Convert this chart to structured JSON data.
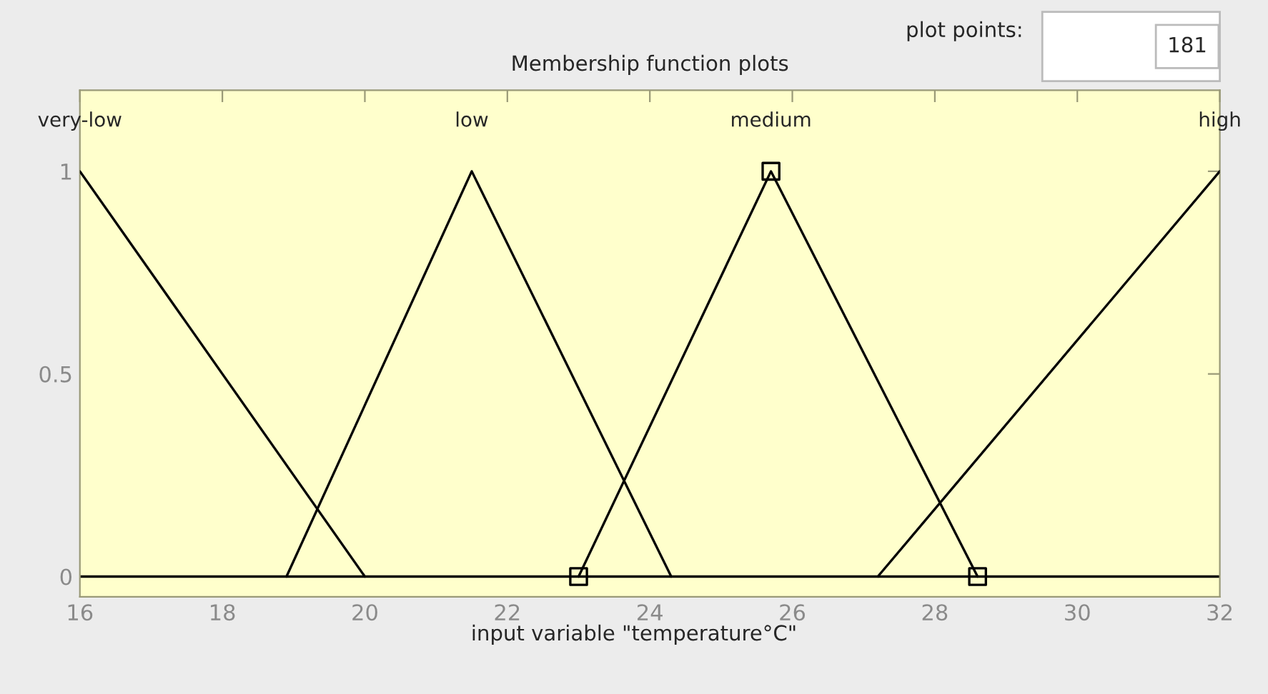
{
  "chart_data": {
    "type": "line",
    "title": "Membership function plots",
    "xlabel": "input variable \"temperature°C\"",
    "annotations": [
      "plot points:",
      "181"
    ],
    "xlim": [
      16,
      32
    ],
    "xticks": [
      16,
      18,
      20,
      22,
      24,
      26,
      28,
      30,
      32
    ],
    "ylim": [
      -0.05,
      1.2
    ],
    "yticks": [
      0,
      0.5,
      1
    ],
    "grid": false,
    "legend": false,
    "ref_lines": [
      {
        "axis": "y",
        "value": 0,
        "color": "#000000",
        "line_style": "solid"
      }
    ],
    "series": [
      {
        "name": "very-low",
        "color": "#000000",
        "marker": "none",
        "x": [
          16,
          20
        ],
        "values": [
          1,
          0
        ]
      },
      {
        "name": "low",
        "color": "#000000",
        "marker": "none",
        "x": [
          18.9,
          21.5,
          24.3
        ],
        "values": [
          0,
          1,
          0
        ]
      },
      {
        "name": "medium",
        "color": "#000000",
        "marker": "square",
        "x": [
          23,
          25.7,
          28.6
        ],
        "values": [
          0,
          1,
          0
        ]
      },
      {
        "name": "high",
        "color": "#000000",
        "marker": "none",
        "x": [
          27.2,
          32
        ],
        "values": [
          0,
          1
        ]
      }
    ]
  }
}
